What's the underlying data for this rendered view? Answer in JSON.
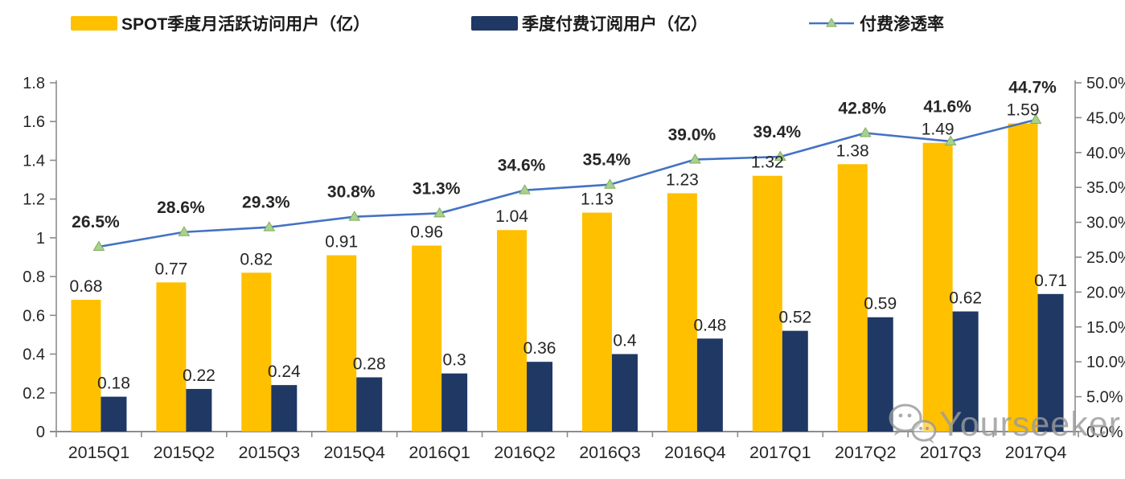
{
  "chart_data": {
    "type": "bar+line",
    "title": "",
    "categories": [
      "2015Q1",
      "2015Q2",
      "2015Q3",
      "2015Q4",
      "2016Q1",
      "2016Q2",
      "2016Q3",
      "2016Q4",
      "2017Q1",
      "2017Q2",
      "2017Q3",
      "2017Q4"
    ],
    "series": [
      {
        "name": "SPOT季度月活跃访问用户（亿）",
        "type": "bar",
        "axis": "left",
        "color": "#FFC000",
        "values": [
          0.68,
          0.77,
          0.82,
          0.91,
          0.96,
          1.04,
          1.13,
          1.23,
          1.32,
          1.38,
          1.49,
          1.59
        ],
        "labels": [
          "0.68",
          "0.77",
          "0.82",
          "0.91",
          "0.96",
          "1.04",
          "1.13",
          "1.23",
          "1.32",
          "1.38",
          "1.49",
          "1.59"
        ]
      },
      {
        "name": "季度付费订阅用户（亿）",
        "type": "bar",
        "axis": "left",
        "color": "#1F3864",
        "values": [
          0.18,
          0.22,
          0.24,
          0.28,
          0.3,
          0.36,
          0.4,
          0.48,
          0.52,
          0.59,
          0.62,
          0.71
        ],
        "labels": [
          "0.18",
          "0.22",
          "0.24",
          "0.28",
          "0.3",
          "0.36",
          "0.4",
          "0.48",
          "0.52",
          "0.59",
          "0.62",
          "0.71"
        ]
      },
      {
        "name": "付费渗透率",
        "type": "line",
        "axis": "right",
        "color": "#4472C4",
        "marker": "triangle",
        "marker_color": "#A9D18E",
        "marker_edge_color": "#7FAE5B",
        "values": [
          26.5,
          28.6,
          29.3,
          30.8,
          31.3,
          34.6,
          35.4,
          39.0,
          39.4,
          42.8,
          41.6,
          44.7
        ],
        "labels": [
          "26.5%",
          "28.6%",
          "29.3%",
          "30.8%",
          "31.3%",
          "34.6%",
          "35.4%",
          "39.0%",
          "39.4%",
          "42.8%",
          "41.6%",
          "44.7%"
        ]
      }
    ],
    "left_axis": {
      "min": 0,
      "max": 1.8,
      "tick_step": 0.2,
      "tick_labels": [
        "0",
        "0.2",
        "0.4",
        "0.6",
        "0.8",
        "1",
        "1.2",
        "1.4",
        "1.6",
        "1.8"
      ]
    },
    "right_axis": {
      "min": 0,
      "max": 50,
      "tick_step": 5,
      "tick_labels": [
        "0.0%",
        "5.0%",
        "10.0%",
        "15.0%",
        "20.0%",
        "25.0%",
        "30.0%",
        "35.0%",
        "40.0%",
        "45.0%",
        "50.0%"
      ]
    },
    "grid": false,
    "legend_position": "top",
    "axis_color": "#8C8C8C",
    "label_color": "#262626"
  },
  "watermark": {
    "text": "Yourseeker",
    "icon": "wechat-icon"
  }
}
